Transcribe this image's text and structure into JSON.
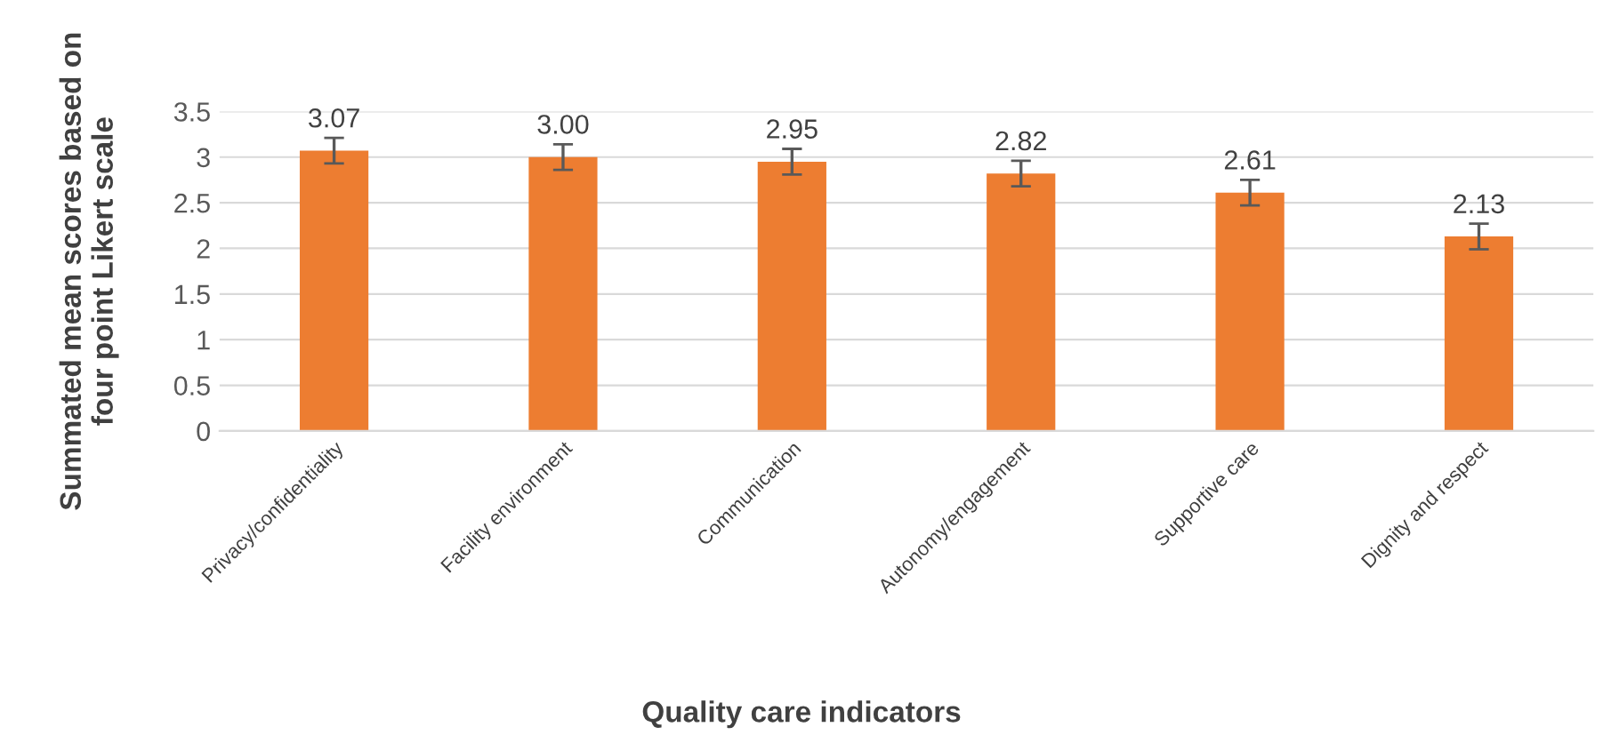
{
  "chart_data": {
    "type": "bar",
    "xlabel": "Quality care indicators",
    "ylabel": "Summated mean scores based on\nfour point Likert scale",
    "categories": [
      "Privacy/confidentiality",
      "Facility environment",
      "Communication",
      "Autonomy/engagement",
      "Supportive care",
      "Dignity and respect"
    ],
    "values": [
      3.07,
      3.0,
      2.95,
      2.82,
      2.61,
      2.13
    ],
    "value_labels": [
      "3.07",
      "3.00",
      "2.95",
      "2.82",
      "2.61",
      "2.13"
    ],
    "errors": [
      0.14,
      0.14,
      0.14,
      0.14,
      0.14,
      0.14
    ],
    "color": "#ed7d31",
    "ylim": [
      0,
      3.5
    ],
    "yticks": [
      0,
      0.5,
      1,
      1.5,
      2,
      2.5,
      3,
      3.5
    ],
    "grid": "y"
  }
}
